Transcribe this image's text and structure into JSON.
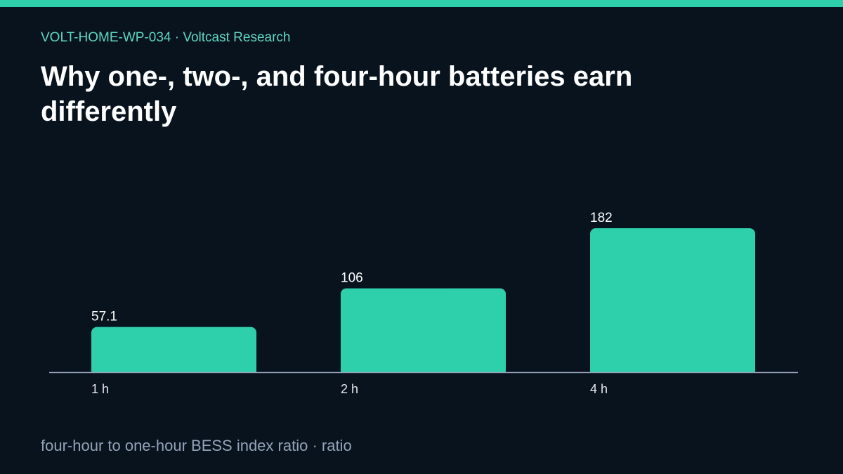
{
  "header": {
    "eyebrow": "VOLT-HOME-WP-034 · Voltcast Research",
    "title": "Why one-, two-, and four-hour batteries earn differently"
  },
  "footer": {
    "caption": "four-hour to one-hour BESS index ratio · ratio"
  },
  "colors": {
    "background": "#08131e",
    "accent": "#2ecfab",
    "axis": "#94a3b8",
    "label": "#ffffff",
    "tick": "#e5e7eb"
  },
  "chart_data": {
    "type": "bar",
    "categories": [
      "1 h",
      "2 h",
      "4 h"
    ],
    "values": [
      57.1,
      106,
      182
    ],
    "value_labels": [
      "57.1",
      "106",
      "182"
    ],
    "ylim": [
      0,
      182
    ],
    "grid": false,
    "legend": "none"
  }
}
